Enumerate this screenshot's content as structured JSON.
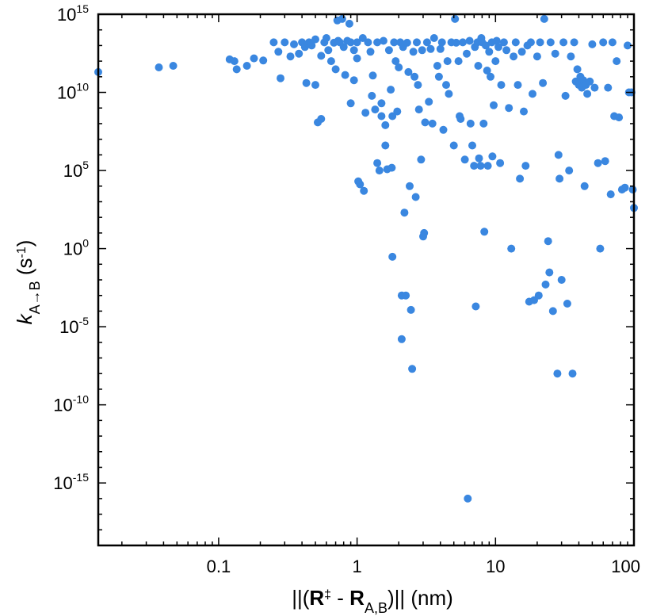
{
  "chart_data": {
    "type": "scatter",
    "title": "",
    "xlabel": {
      "prefix": "||(",
      "bold1": "R",
      "sup1": "‡",
      "mid": " - ",
      "bold2": "R",
      "sub2": "A,B",
      "suffix": ")|| (nm)"
    },
    "ylabel": {
      "italic": "k",
      "sub": "A→B",
      "rest_before": " (s",
      "sup": "-1",
      "rest_after": ")"
    },
    "x_scale": "log",
    "y_scale": "log",
    "xlim": [
      0.0135,
      100
    ],
    "ylim": [
      1e-19,
      1000000000000000.0
    ],
    "x_ticks": [
      {
        "value": 0.1,
        "label": "0.1"
      },
      {
        "value": 1,
        "label": "1"
      },
      {
        "value": 10,
        "label": "10"
      },
      {
        "value": 100,
        "label": "100"
      }
    ],
    "y_ticks": [
      {
        "value": 1000000000000000.0,
        "base": "10",
        "exp": "15"
      },
      {
        "value": 10000000000.0,
        "base": "10",
        "exp": "10"
      },
      {
        "value": 100000.0,
        "base": "10",
        "exp": "5"
      },
      {
        "value": 1,
        "base": "10",
        "exp": "0"
      },
      {
        "value": 1e-05,
        "base": "10",
        "exp": "-5"
      },
      {
        "value": 1e-10,
        "base": "10",
        "exp": "-10"
      },
      {
        "value": 1e-15,
        "base": "10",
        "exp": "-15"
      }
    ],
    "grid": false,
    "marker_color": "#3a87e0",
    "series": [
      {
        "points": [
          [
            0.0135,
            200000000000.0
          ],
          [
            0.037,
            400000000000.0
          ],
          [
            0.047,
            500000000000.0
          ],
          [
            0.12,
            1300000000000.0
          ],
          [
            0.13,
            1000000000000.0
          ],
          [
            0.135,
            300000000000.0
          ],
          [
            0.16,
            500000000000.0
          ],
          [
            0.18,
            1500000000000.0
          ],
          [
            0.21,
            1100000000000.0
          ],
          [
            0.25,
            16000000000000.0
          ],
          [
            0.27,
            4000000000000.0
          ],
          [
            0.28,
            80000000000.0
          ],
          [
            0.3,
            16000000000000.0
          ],
          [
            0.33,
            2000000000000.0
          ],
          [
            0.35,
            12000000000000.0
          ],
          [
            0.38,
            3000000000000.0
          ],
          [
            0.4,
            16000000000000.0
          ],
          [
            0.42,
            8000000000000.0
          ],
          [
            0.43,
            40000000000.0
          ],
          [
            0.45,
            16000000000000.0
          ],
          [
            0.47,
            10000000000000.0
          ],
          [
            0.5,
            25000000000000.0
          ],
          [
            0.5,
            30000000000.0
          ],
          [
            0.52,
            120000000.0
          ],
          [
            0.55,
            200000000.0
          ],
          [
            0.55,
            2200000000000.0
          ],
          [
            0.58,
            16000000000000.0
          ],
          [
            0.6,
            30000000000000.0
          ],
          [
            0.62,
            5000000000000.0
          ],
          [
            0.65,
            1000000000000.0
          ],
          [
            0.68,
            15000000000000.0
          ],
          [
            0.7,
            300000000000.0
          ],
          [
            0.72,
            400000000000000.0
          ],
          [
            0.73,
            20000000000000.0
          ],
          [
            0.75,
            16000000000000.0
          ],
          [
            0.78,
            500000000000000.0
          ],
          [
            0.8,
            8000000000000.0
          ],
          [
            0.82,
            130000000000.0
          ],
          [
            0.85,
            20000000000000.0
          ],
          [
            0.88,
            250000000000000.0
          ],
          [
            0.9,
            16000000000000.0
          ],
          [
            0.9,
            2000000000.0
          ],
          [
            0.95,
            5000000000000.0
          ],
          [
            0.95,
            60000000000.0
          ],
          [
            1.0,
            16000000000000.0
          ],
          [
            1.0,
            1500000000000.0
          ],
          [
            1.02,
            20000.0
          ],
          [
            1.05,
            13000.0
          ],
          [
            1.1,
            30000000000000.0
          ],
          [
            1.12,
            5000.0
          ],
          [
            1.15,
            500000000.0
          ],
          [
            1.2,
            16000000000000.0
          ],
          [
            1.25,
            4000000000000.0
          ],
          [
            1.28,
            6000000000.0
          ],
          [
            1.3,
            120000000000.0
          ],
          [
            1.35,
            800000000.0
          ],
          [
            1.4,
            16000000000000.0
          ],
          [
            1.4,
            300000.0
          ],
          [
            1.45,
            100000.0
          ],
          [
            1.5,
            2000000000.0
          ],
          [
            1.5,
            300000000.0
          ],
          [
            1.55,
            20000000000000.0
          ],
          [
            1.6,
            4000000.0
          ],
          [
            1.6,
            80000000.0
          ],
          [
            1.65,
            120000.0
          ],
          [
            1.7,
            5000000000000.0
          ],
          [
            1.75,
            15000000000.0
          ],
          [
            1.78,
            150000.0
          ],
          [
            1.8,
            300000000.0
          ],
          [
            1.8,
            0.3
          ],
          [
            1.85,
            16000000000000.0
          ],
          [
            1.9,
            1000000000000.0
          ],
          [
            1.95,
            600000000.0
          ],
          [
            2.0,
            400000000000.0
          ],
          [
            2.05,
            16000000000000.0
          ],
          [
            2.1,
            0.001
          ],
          [
            2.1,
            1.6e-06
          ],
          [
            2.15,
            8000000000000.0
          ],
          [
            2.2,
            200.0
          ],
          [
            2.25,
            0.001
          ],
          [
            2.3,
            15000000000000.0
          ],
          [
            2.35,
            200000000000.0
          ],
          [
            2.4,
            10000.0
          ],
          [
            2.45,
            0.00012
          ],
          [
            2.5,
            2e-08
          ],
          [
            2.55,
            4000000000000.0
          ],
          [
            2.6,
            100000000000.0
          ],
          [
            2.65,
            2000.0
          ],
          [
            2.7,
            16000000000000.0
          ],
          [
            2.75,
            30000000000.0
          ],
          [
            2.8,
            800000000.0
          ],
          [
            2.9,
            500000.0
          ],
          [
            2.95,
            5000000000000.0
          ],
          [
            3.0,
            6.0
          ],
          [
            3.05,
            10.0
          ],
          [
            3.1,
            120000000.0
          ],
          [
            3.2,
            16000000000000.0
          ],
          [
            3.3,
            2500000000.0
          ],
          [
            3.4,
            6000000000000.0
          ],
          [
            3.5,
            100000000.0
          ],
          [
            3.6,
            30000000000000.0
          ],
          [
            3.8,
            500000000000.0
          ],
          [
            3.9,
            100000000000.0
          ],
          [
            4.0,
            6000000000000.0
          ],
          [
            4.1,
            16000000000000.0
          ],
          [
            4.2,
            40000000.0
          ],
          [
            4.4,
            30000000000.0
          ],
          [
            4.5,
            1000000000000.0
          ],
          [
            4.6,
            8000000000.0
          ],
          [
            4.8,
            16000000000000.0
          ],
          [
            5.0,
            4000000.0
          ],
          [
            5.1,
            500000000000000.0
          ],
          [
            5.2,
            15000000000000.0
          ],
          [
            5.4,
            1000000000000.0
          ],
          [
            5.5,
            300000000.0
          ],
          [
            5.6,
            200000000.0
          ],
          [
            5.8,
            16000000000000.0
          ],
          [
            6.0,
            500000.0
          ],
          [
            6.2,
            3000000000000.0
          ],
          [
            6.3,
            1e-16
          ],
          [
            6.5,
            20000000000000.0
          ],
          [
            6.6,
            100000000.0
          ],
          [
            6.8,
            4000000.0
          ],
          [
            7.0,
            200000.0
          ],
          [
            7.1,
            8000000000000.0
          ],
          [
            7.2,
            0.0002
          ],
          [
            7.4,
            16000000000000.0
          ],
          [
            7.5,
            500000000000.0
          ],
          [
            7.6,
            600000.0
          ],
          [
            7.8,
            200000.0
          ],
          [
            7.9,
            30000000000000.0
          ],
          [
            8.0,
            16000000000000.0
          ],
          [
            8.2,
            100000000.0
          ],
          [
            8.3,
            12.0
          ],
          [
            8.5,
            10000000000000.0
          ],
          [
            8.7,
            250000000000.0
          ],
          [
            8.8,
            200000.0
          ],
          [
            9.0,
            4000000000000.0
          ],
          [
            9.2,
            100000000000.0
          ],
          [
            9.4,
            16000000000000.0
          ],
          [
            9.5,
            800000.0
          ],
          [
            9.7,
            1500000000.0
          ],
          [
            10.0,
            1000000000000.0
          ],
          [
            10.2,
            20000000000000.0
          ],
          [
            10.5,
            8000000000000.0
          ],
          [
            10.8,
            300000.0
          ],
          [
            11.0,
            30000000000.0
          ],
          [
            11.5,
            16000000000000.0
          ],
          [
            12.0,
            5000000000000.0
          ],
          [
            12.5,
            1000000000.0
          ],
          [
            13.0,
            1.0
          ],
          [
            13.5,
            2000000000000.0
          ],
          [
            14.0,
            16000000000000.0
          ],
          [
            14.5,
            30000000000.0
          ],
          [
            15.0,
            30000.0
          ],
          [
            15.5,
            4000000000000.0
          ],
          [
            16.0,
            600000000.0
          ],
          [
            16.5,
            200000.0
          ],
          [
            17.0,
            10000000000000.0
          ],
          [
            17.5,
            0.0004
          ],
          [
            18.0,
            16000000000000.0
          ],
          [
            18.5,
            8000000000.0
          ],
          [
            19.0,
            0.0005
          ],
          [
            20.0,
            2000000000000.0
          ],
          [
            20.5,
            0.001
          ],
          [
            21.0,
            16000000000000.0
          ],
          [
            22.0,
            40000000000.0
          ],
          [
            22.5,
            500000000000000.0
          ],
          [
            23.0,
            0.005
          ],
          [
            24.0,
            3.0
          ],
          [
            24.5,
            0.03
          ],
          [
            25.0,
            16000000000000.0
          ],
          [
            26.0,
            0.0001
          ],
          [
            27.0,
            3000000000000.0
          ],
          [
            28.0,
            1e-08
          ],
          [
            28.5,
            1000000.0
          ],
          [
            29.0,
            30000.0
          ],
          [
            30.0,
            0.01
          ],
          [
            31.0,
            16000000000000.0
          ],
          [
            32.0,
            6000000000.0
          ],
          [
            33.0,
            0.0003
          ],
          [
            34.0,
            100000.0
          ],
          [
            35.0,
            2000000000000.0
          ],
          [
            36.0,
            1e-08
          ],
          [
            37.0,
            16000000000000.0
          ],
          [
            38.0,
            50000000000.0
          ],
          [
            39.0,
            300000000000.0
          ],
          [
            40.0,
            30000000000.0
          ],
          [
            41.0,
            100000000000.0
          ],
          [
            42.0,
            20000000000.0
          ],
          [
            43.0,
            60000000000.0
          ],
          [
            44.0,
            10000.0
          ],
          [
            45.0,
            30000000000.0
          ],
          [
            46.0,
            8000000000.0
          ],
          [
            48.0,
            50000000000.0
          ],
          [
            50.0,
            12000000000000.0
          ],
          [
            52.0,
            20000000000.0
          ],
          [
            55.0,
            300000.0
          ],
          [
            57.0,
            1.0
          ],
          [
            60.0,
            16000000000000.0
          ],
          [
            62.0,
            400000.0
          ],
          [
            65.0,
            20000000000.0
          ],
          [
            68.0,
            3000.0
          ],
          [
            70.0,
            16000000000000.0
          ],
          [
            72.0,
            300000000.0
          ],
          [
            75.0,
            1000000000000.0
          ],
          [
            78.0,
            250000000.0
          ],
          [
            82.0,
            6000.0
          ],
          [
            86.0,
            8000.0
          ],
          [
            90.0,
            10000000000000.0
          ],
          [
            92.0,
            10000000000.0
          ],
          [
            96.0,
            10000000000.0
          ],
          [
            98.0,
            6000.0
          ],
          [
            100.0,
            400.0
          ]
        ]
      }
    ]
  }
}
